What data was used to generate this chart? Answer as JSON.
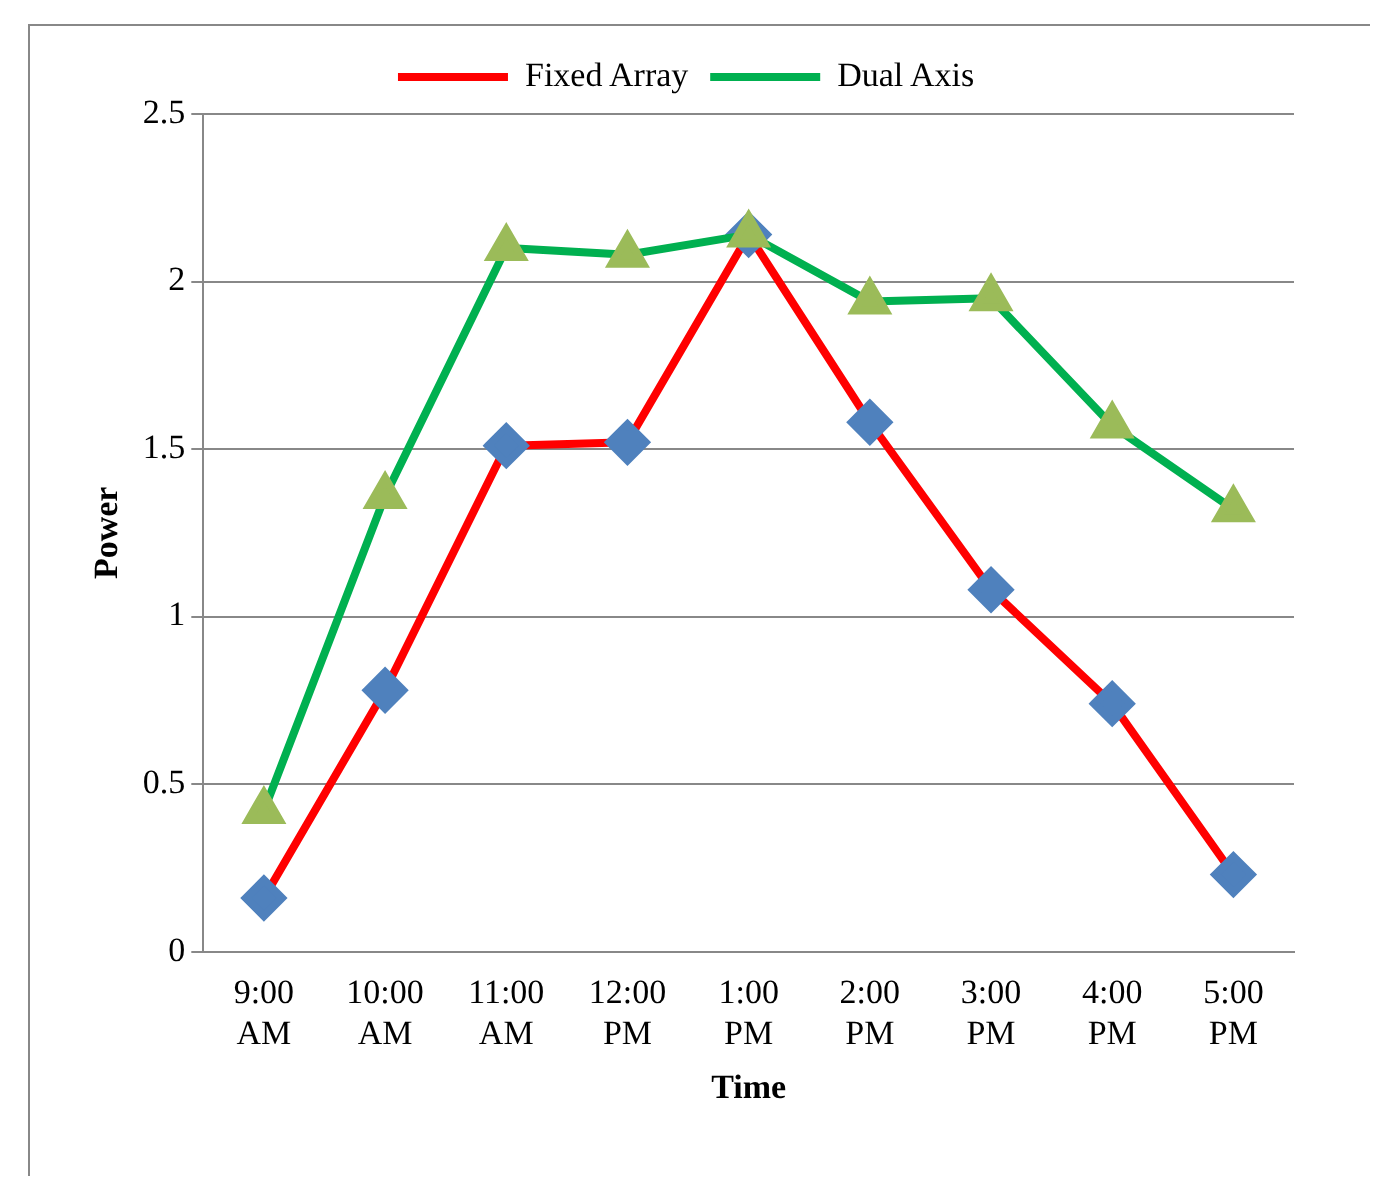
{
  "chart_data": {
    "type": "line",
    "xlabel": "Time",
    "ylabel": "Power",
    "categories": [
      "9:00\nAM",
      "10:00\nAM",
      "11:00\nAM",
      "12:00\nPM",
      "1:00\nPM",
      "2:00\nPM",
      "3:00\nPM",
      "4:00\nPM",
      "5:00\nPM"
    ],
    "series": [
      {
        "name": "Fixed Array",
        "color": "#ff0000",
        "marker": "diamond",
        "colors": [
          "#4f81bd",
          "#4f81bd",
          "#4f81bd",
          "#4f81bd",
          "#4f81bd",
          "#4f81bd",
          "#4f81bd",
          "#4f81bd",
          "#4f81bd"
        ],
        "values": [
          0.16,
          0.78,
          1.51,
          1.52,
          2.14,
          1.58,
          1.08,
          0.74,
          0.23
        ]
      },
      {
        "name": "Dual Axis",
        "color": "#00b050",
        "marker": "triangle",
        "colors": [
          "#9bbb59",
          "#9bbb59",
          "#9bbb59",
          "#9bbb59",
          "#9bbb59",
          "#9bbb59",
          "#9bbb59",
          "#9bbb59",
          "#9bbb59"
        ],
        "values": [
          0.42,
          1.36,
          2.1,
          2.08,
          2.14,
          1.94,
          1.95,
          1.57,
          1.32
        ]
      }
    ],
    "ylim": [
      0,
      2.5
    ],
    "yticks": [
      0,
      0.5,
      1,
      1.5,
      2,
      2.5
    ],
    "grid": "y",
    "legend": "top",
    "line_style": "solid"
  }
}
